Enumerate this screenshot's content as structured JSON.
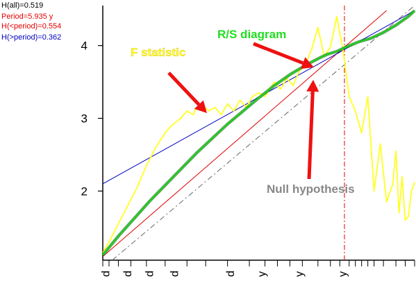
{
  "stats": [
    {
      "text": "H(all)=0.519",
      "color": "#000000"
    },
    {
      "text": "Period=5.935 y",
      "color": "#e00000"
    },
    {
      "text": "H(<period)=0.554",
      "color": "#e00000"
    },
    {
      "text": "H(>period)=0.362",
      "color": "#0000c0"
    }
  ],
  "chart_data": {
    "type": "line",
    "title": "",
    "xlabel": "",
    "ylabel": "",
    "x_unit_labels": [
      "d",
      "d",
      "d",
      "d",
      "d",
      "y",
      "y",
      "y"
    ],
    "yticks": [
      2,
      3,
      4
    ],
    "ylim": [
      1.05,
      4.55
    ],
    "xlim": [
      0,
      1
    ],
    "grid": false,
    "period_marker_x": 0.775,
    "series": [
      {
        "role": "rs",
        "color": "#22cc22",
        "x": [
          0.0,
          0.05,
          0.1,
          0.15,
          0.2,
          0.25,
          0.3,
          0.35,
          0.4,
          0.45,
          0.5,
          0.55,
          0.6,
          0.65,
          0.7,
          0.72,
          0.75,
          0.78,
          0.82,
          0.86,
          0.9,
          0.94,
          0.98,
          1.0
        ],
        "y": [
          1.12,
          1.38,
          1.62,
          1.86,
          2.08,
          2.3,
          2.52,
          2.72,
          2.92,
          3.1,
          3.28,
          3.45,
          3.6,
          3.73,
          3.84,
          3.88,
          3.92,
          3.98,
          4.05,
          4.1,
          4.18,
          4.28,
          4.4,
          4.48
        ]
      },
      {
        "role": "null_hypothesis",
        "color": "#666666",
        "dashed": true,
        "x": [
          0.03,
          1.0
        ],
        "y": [
          1.05,
          4.55
        ]
      },
      {
        "role": "fit_below_period",
        "color": "#e00000",
        "x": [
          0.0,
          0.91
        ],
        "y": [
          1.1,
          4.48
        ]
      },
      {
        "role": "fit_above_period",
        "color": "#0000c0",
        "x": [
          0.0,
          1.0
        ],
        "y": [
          2.1,
          4.48
        ]
      },
      {
        "role": "f_statistic",
        "color": "#ffff22",
        "x": [
          0.0,
          0.02,
          0.05,
          0.08,
          0.11,
          0.14,
          0.17,
          0.2,
          0.22,
          0.25,
          0.27,
          0.29,
          0.3,
          0.32,
          0.34,
          0.36,
          0.38,
          0.4,
          0.42,
          0.44,
          0.46,
          0.48,
          0.5,
          0.52,
          0.55,
          0.57,
          0.59,
          0.61,
          0.63,
          0.65,
          0.67,
          0.69,
          0.71,
          0.73,
          0.75,
          0.77,
          0.79,
          0.81,
          0.83,
          0.85,
          0.87,
          0.89,
          0.9,
          0.91,
          0.93,
          0.94,
          0.95,
          0.96,
          0.97,
          0.98,
          0.99,
          1.0
        ],
        "y": [
          1.15,
          1.3,
          1.55,
          1.8,
          2.05,
          2.35,
          2.6,
          2.8,
          2.9,
          3.0,
          3.1,
          3.05,
          3.15,
          3.18,
          3.1,
          3.15,
          3.05,
          3.2,
          3.1,
          3.25,
          3.15,
          3.3,
          3.35,
          3.3,
          3.5,
          3.4,
          3.55,
          3.45,
          3.65,
          3.75,
          3.95,
          4.25,
          3.85,
          3.98,
          4.4,
          3.95,
          3.3,
          3.1,
          2.8,
          3.3,
          2.0,
          2.65,
          2.25,
          1.85,
          2.1,
          2.55,
          1.7,
          2.2,
          1.6,
          1.65,
          2.0,
          2.12
        ]
      }
    ],
    "annotations": [
      {
        "text": "R/S diagram",
        "color": "#22dd22",
        "target": [
          0.67,
          3.7
        ]
      },
      {
        "text": "F statistic",
        "color": "#ffff22",
        "target": [
          0.34,
          3.1
        ]
      },
      {
        "text": "Null hypothesis",
        "color": "#888888",
        "target": [
          0.69,
          3.55
        ]
      }
    ]
  }
}
